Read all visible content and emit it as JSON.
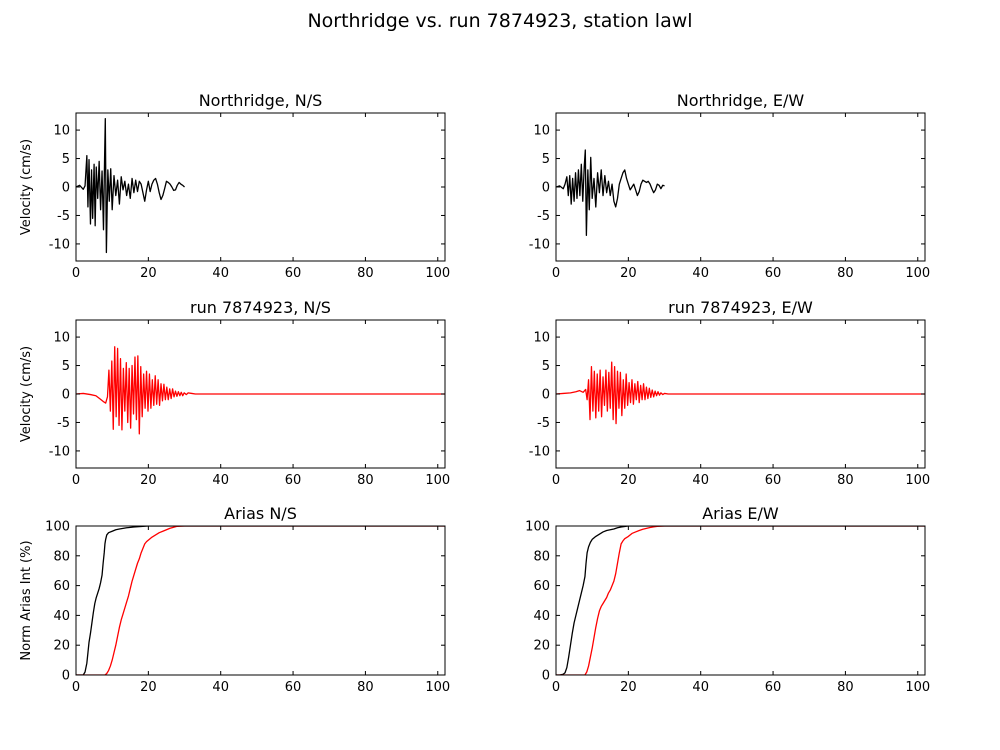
{
  "figure": {
    "suptitle": "Northridge vs. run 7874923, station lawl"
  },
  "chart_data": [
    {
      "type": "line",
      "title": "Northridge, N/S",
      "ylabel": "Velocity (cm/s)",
      "xlim": [
        0,
        102
      ],
      "ylim": [
        -13,
        13
      ],
      "xticks": [
        0,
        20,
        40,
        60,
        80,
        100
      ],
      "yticks": [
        -10,
        -5,
        0,
        5,
        10
      ],
      "series": [
        {
          "color": "#000000",
          "x": [
            0,
            1,
            2,
            2.5,
            3,
            3.3,
            3.6,
            4,
            4.3,
            4.6,
            5,
            5.3,
            5.6,
            6,
            6.4,
            6.8,
            7.2,
            7.6,
            7.9,
            8.1,
            8.4,
            8.8,
            9.2,
            9.6,
            10,
            10.5,
            11,
            11.5,
            12,
            12.5,
            13,
            13.5,
            14,
            14.5,
            15,
            15.5,
            16,
            16.5,
            17,
            17.5,
            18,
            18.5,
            19,
            19.5,
            20,
            20.5,
            21,
            21.5,
            22,
            22.5,
            23,
            23.5,
            24,
            24.5,
            25,
            25.5,
            26,
            26.5,
            27,
            27.5,
            28,
            28.5,
            29,
            29.5,
            30
          ],
          "y": [
            0,
            0.3,
            -0.4,
            0.2,
            5.5,
            -3.5,
            4.8,
            -6.5,
            3,
            -5.5,
            4,
            -6.8,
            3.5,
            -2,
            4.5,
            -4,
            2.8,
            -7.5,
            5,
            12,
            -11.5,
            3,
            -2.5,
            3.2,
            -4,
            2,
            -1.5,
            1.2,
            -3,
            1.8,
            -0.5,
            1,
            -1.5,
            0.5,
            -2,
            1.5,
            -1,
            1.2,
            -0.8,
            1,
            0.5,
            -1,
            -2.5,
            -0.5,
            1,
            -0.8,
            0.5,
            1.2,
            1.5,
            0.5,
            -1,
            -2.2,
            -1.5,
            -0.3,
            1,
            0.8,
            0.5,
            0,
            -0.6,
            -0.5,
            0.3,
            0.8,
            0.5,
            0.3,
            0
          ]
        }
      ]
    },
    {
      "type": "line",
      "title": "Northridge, E/W",
      "ylabel": "",
      "xlim": [
        0,
        102
      ],
      "ylim": [
        -13,
        13
      ],
      "xticks": [
        0,
        20,
        40,
        60,
        80,
        100
      ],
      "yticks": [
        -10,
        -5,
        0,
        5,
        10
      ],
      "series": [
        {
          "color": "#000000",
          "x": [
            0,
            1,
            2,
            2.5,
            3,
            3.4,
            3.8,
            4.2,
            4.6,
            5,
            5.4,
            5.8,
            6.2,
            6.6,
            7,
            7.4,
            7.8,
            8.1,
            8.4,
            8.8,
            9.2,
            9.6,
            10,
            10.5,
            11,
            11.5,
            12,
            12.5,
            13,
            13.5,
            14,
            14.5,
            15,
            15.5,
            16,
            16.5,
            17,
            17.5,
            18,
            18.5,
            19,
            19.5,
            20,
            20.5,
            21,
            21.5,
            22,
            22.5,
            23,
            23.5,
            24,
            24.5,
            25,
            25.5,
            26,
            26.5,
            27,
            27.5,
            28,
            28.5,
            29,
            29.5,
            30
          ],
          "y": [
            0,
            0.2,
            -0.3,
            0.5,
            1.8,
            -1.5,
            2,
            -3,
            1.5,
            -2.5,
            2.5,
            -2,
            3,
            -1.5,
            4,
            -2.5,
            3.5,
            6.5,
            -8.5,
            3,
            -4,
            5.2,
            -2,
            1.5,
            -3.5,
            2.5,
            -1,
            3,
            -1.5,
            2,
            -1,
            1,
            -1.5,
            0.5,
            -2.5,
            -3.5,
            -2,
            0.5,
            1.5,
            2.5,
            3,
            1.5,
            0.5,
            -0.5,
            0,
            0.5,
            -0.5,
            -1.5,
            -0.8,
            0.5,
            1.2,
            1,
            0.8,
            1,
            0.5,
            -0.3,
            -1,
            -0.5,
            0.5,
            0.3,
            -0.3,
            0.3,
            0.2
          ]
        }
      ]
    },
    {
      "type": "line",
      "title": "run 7874923, N/S",
      "ylabel": "Velocity (cm/s)",
      "xlim": [
        0,
        102
      ],
      "ylim": [
        -13,
        13
      ],
      "xticks": [
        0,
        20,
        40,
        60,
        80,
        100
      ],
      "yticks": [
        -10,
        -5,
        0,
        5,
        10
      ],
      "series": [
        {
          "color": "#ff0000",
          "x": [
            0,
            2,
            4,
            5.5,
            6.5,
            7.5,
            8.2,
            8.7,
            9.1,
            9.5,
            9.9,
            10.3,
            10.7,
            11.1,
            11.5,
            11.9,
            12.3,
            12.7,
            13.1,
            13.5,
            13.9,
            14.3,
            14.7,
            15.1,
            15.5,
            15.9,
            16.3,
            16.7,
            17.1,
            17.5,
            17.9,
            18.3,
            18.7,
            19.1,
            19.5,
            19.9,
            20.3,
            20.7,
            21.1,
            21.5,
            21.9,
            22.3,
            22.7,
            23.1,
            23.5,
            23.9,
            24.3,
            24.7,
            25.1,
            25.5,
            25.9,
            26.3,
            26.7,
            27.1,
            27.5,
            27.9,
            28.3,
            28.7,
            29.1,
            29.5,
            29.9,
            30.5,
            31,
            32,
            33,
            34,
            40,
            60,
            80,
            100,
            102
          ],
          "y": [
            0,
            0.1,
            -0.1,
            -0.3,
            -0.8,
            -1.3,
            -1.6,
            -0.5,
            4.2,
            -3,
            5.8,
            -6.2,
            8.3,
            -4,
            8,
            -5.5,
            6.2,
            -6.3,
            4.5,
            -3,
            5.5,
            -5,
            4.5,
            -6,
            5,
            -3.5,
            6.5,
            -4.5,
            6.7,
            -7,
            4.8,
            -4,
            3.5,
            -2.5,
            4,
            -3,
            3.5,
            -2.5,
            2.5,
            -2,
            3.2,
            -1.8,
            2.5,
            -2,
            1.8,
            -1.2,
            1.7,
            -1,
            1.2,
            -1,
            0.9,
            -0.8,
            0.9,
            -0.5,
            0.5,
            -0.4,
            0.4,
            -0.3,
            0.3,
            -0.3,
            0.2,
            -0.1,
            0.2,
            0.1,
            0,
            0,
            0,
            0,
            0,
            0,
            0
          ]
        }
      ]
    },
    {
      "type": "line",
      "title": "run 7874923, E/W",
      "ylabel": "",
      "xlim": [
        0,
        102
      ],
      "ylim": [
        -13,
        13
      ],
      "xticks": [
        0,
        20,
        40,
        60,
        80,
        100
      ],
      "yticks": [
        -10,
        -5,
        0,
        5,
        10
      ],
      "series": [
        {
          "color": "#ff0000",
          "x": [
            0,
            2,
            4,
            5.5,
            6.5,
            7.5,
            8.2,
            8.6,
            9,
            9.4,
            9.8,
            10.2,
            10.6,
            11,
            11.4,
            11.8,
            12.2,
            12.6,
            13,
            13.4,
            13.8,
            14.2,
            14.6,
            15,
            15.4,
            15.8,
            16.2,
            16.6,
            17,
            17.4,
            17.8,
            18.2,
            18.6,
            19,
            19.4,
            19.8,
            20.2,
            20.6,
            21,
            21.4,
            21.8,
            22.2,
            22.6,
            23,
            23.4,
            23.8,
            24.2,
            24.6,
            25,
            25.4,
            25.8,
            26.2,
            26.6,
            27,
            27.4,
            27.8,
            28.2,
            28.6,
            29,
            29.5,
            30,
            31,
            32,
            34,
            40,
            60,
            80,
            100,
            102
          ],
          "y": [
            0,
            0.1,
            0.2,
            0.4,
            0.6,
            0.3,
            0.8,
            -1,
            2.5,
            -4.5,
            4.8,
            -3,
            4,
            -4.2,
            3.5,
            -3,
            4.2,
            -4,
            3,
            -2,
            4.2,
            -3,
            3.8,
            -2.5,
            5.6,
            -4.5,
            4.8,
            -5.2,
            4,
            -2.5,
            3.8,
            -3.8,
            2.5,
            -2.5,
            3.5,
            -2,
            2,
            -1.5,
            2.5,
            -1.8,
            1.8,
            -1,
            2.2,
            -1.5,
            1.5,
            -1,
            1.8,
            -1,
            1.2,
            -0.8,
            1,
            -0.6,
            0.7,
            -0.5,
            0.5,
            -0.3,
            0.4,
            -0.2,
            0.2,
            -0.1,
            0.1,
            0,
            0,
            0,
            0,
            0,
            0,
            0,
            0
          ]
        }
      ]
    },
    {
      "type": "line",
      "title": "Arias N/S",
      "ylabel": "Norm Arias Int (%)",
      "xlim": [
        0,
        102
      ],
      "ylim": [
        0,
        100
      ],
      "xticks": [
        0,
        20,
        40,
        60,
        80,
        100
      ],
      "yticks": [
        0,
        20,
        40,
        60,
        80,
        100
      ],
      "series": [
        {
          "color": "#000000",
          "x": [
            0,
            2,
            2.5,
            3,
            3.3,
            3.6,
            4,
            4.4,
            4.8,
            5.2,
            5.6,
            6,
            6.4,
            6.8,
            7.2,
            7.5,
            7.8,
            8,
            8.2,
            8.5,
            9,
            10,
            11,
            12,
            14,
            16,
            18,
            20,
            30,
            102
          ],
          "y": [
            0,
            0,
            2,
            8,
            15,
            22,
            28,
            35,
            42,
            48,
            52,
            55,
            58,
            62,
            67,
            75,
            82,
            88,
            91,
            94,
            95.5,
            96.5,
            97.5,
            98,
            98.8,
            99.3,
            99.7,
            100,
            100,
            100
          ]
        },
        {
          "color": "#ff0000",
          "x": [
            0,
            8,
            8.5,
            9,
            9.5,
            10,
            10.5,
            11,
            11.5,
            12,
            12.5,
            13,
            13.5,
            14,
            14.5,
            15,
            15.5,
            16,
            16.5,
            17,
            17.5,
            18,
            18.5,
            19,
            19.5,
            20,
            21,
            22,
            23,
            24,
            25,
            26,
            27,
            28,
            30,
            102
          ],
          "y": [
            0,
            0,
            1,
            3,
            6,
            10,
            15,
            20,
            26,
            32,
            37,
            41,
            45,
            49,
            53,
            58,
            63,
            67,
            71,
            75,
            78,
            82,
            85,
            88,
            89.5,
            90.5,
            92.5,
            94,
            95.5,
            96.5,
            97.5,
            98.5,
            99.2,
            99.8,
            100,
            100
          ]
        }
      ]
    },
    {
      "type": "line",
      "title": "Arias E/W",
      "ylabel": "",
      "xlim": [
        0,
        102
      ],
      "ylim": [
        0,
        100
      ],
      "xticks": [
        0,
        20,
        40,
        60,
        80,
        100
      ],
      "yticks": [
        0,
        20,
        40,
        60,
        80,
        100
      ],
      "series": [
        {
          "color": "#000000",
          "x": [
            0,
            1,
            2,
            2.5,
            3,
            3.5,
            4,
            4.5,
            5,
            5.5,
            6,
            6.5,
            7,
            7.5,
            8,
            8.3,
            8.6,
            9,
            9.5,
            10,
            11,
            12,
            13,
            14,
            15,
            16,
            17,
            18,
            20,
            30,
            102
          ],
          "y": [
            0,
            0,
            0.5,
            1.5,
            5,
            12,
            20,
            28,
            35,
            40,
            45,
            50,
            55,
            60,
            66,
            75,
            82,
            86,
            89,
            91,
            93,
            94.5,
            96,
            97,
            97.5,
            98,
            98.8,
            99.3,
            100,
            100,
            100
          ]
        },
        {
          "color": "#ff0000",
          "x": [
            0,
            8,
            8.5,
            9,
            9.5,
            10,
            10.5,
            11,
            11.5,
            12,
            12.5,
            13,
            13.5,
            14,
            14.5,
            15,
            15.5,
            16,
            16.5,
            17,
            17.5,
            18,
            18.5,
            19,
            20,
            21,
            22,
            23,
            24,
            25,
            26,
            27,
            28,
            30,
            102
          ],
          "y": [
            0,
            0,
            2,
            6,
            12,
            18,
            25,
            32,
            38,
            43,
            46,
            48,
            50,
            52,
            55,
            57,
            60,
            63,
            68,
            75,
            82,
            88,
            90,
            91.5,
            93,
            95,
            96,
            97,
            97.8,
            98.4,
            99,
            99.4,
            99.8,
            100,
            100
          ]
        }
      ]
    }
  ]
}
